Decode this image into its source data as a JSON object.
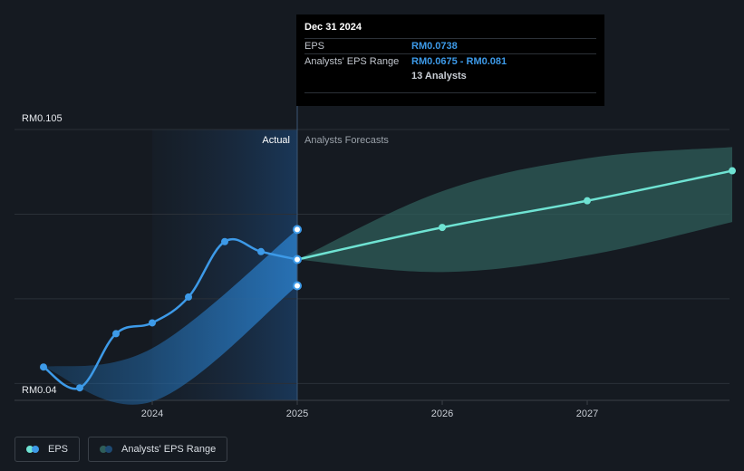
{
  "chart_data": {
    "type": "line",
    "ylim": [
      0.04,
      0.105
    ],
    "y_tick_labels": [
      "RM0.105",
      "RM0.04"
    ],
    "x_ticks": [
      "2024",
      "2025",
      "2026",
      "2027"
    ],
    "actual_label": "Actual",
    "forecast_label": "Analysts Forecasts",
    "series": [
      {
        "name": "EPS",
        "color": "#3d9ae8",
        "points": [
          {
            "x": 2023.25,
            "y": 0.048
          },
          {
            "x": 2023.5,
            "y": 0.043
          },
          {
            "x": 2023.75,
            "y": 0.056
          },
          {
            "x": 2024.0,
            "y": 0.0586
          },
          {
            "x": 2024.25,
            "y": 0.0648
          },
          {
            "x": 2024.5,
            "y": 0.0781
          },
          {
            "x": 2024.75,
            "y": 0.0757
          },
          {
            "x": 2025.0,
            "y": 0.0738
          }
        ]
      },
      {
        "name": "EPS Forecast",
        "color": "#6fe3d3",
        "points": [
          {
            "x": 2025.0,
            "y": 0.0738
          },
          {
            "x": 2026.0,
            "y": 0.0815
          },
          {
            "x": 2027.0,
            "y": 0.0879
          },
          {
            "x": 2028.0,
            "y": 0.0951
          }
        ]
      }
    ],
    "past_range": [
      {
        "x": 2023.25,
        "low": 0.048,
        "high": 0.048
      },
      {
        "x": 2024.0,
        "low": 0.0397,
        "high": 0.0525
      },
      {
        "x": 2025.0,
        "low": 0.0675,
        "high": 0.081
      }
    ],
    "forecast_range": [
      {
        "x": 2025.0,
        "low": 0.0738,
        "high": 0.0738
      },
      {
        "x": 2026.0,
        "low": 0.0708,
        "high": 0.0902
      },
      {
        "x": 2027.0,
        "low": 0.0748,
        "high": 0.0981
      },
      {
        "x": 2028.0,
        "low": 0.0828,
        "high": 0.1008
      }
    ]
  },
  "tooltip": {
    "date": "Dec 31 2024",
    "eps_label": "EPS",
    "eps_value": "RM0.0738",
    "range_label": "Analysts' EPS Range",
    "range_value": "RM0.0675 - RM0.081",
    "analysts": "13 Analysts"
  },
  "legend": {
    "eps": "EPS",
    "range": "Analysts' EPS Range"
  },
  "colors": {
    "eps": "#3d9ae8",
    "forecast": "#6fe3d3",
    "past_band": "#1e5f99",
    "forecast_band": "#2f5e5a",
    "background": "#151a21"
  }
}
